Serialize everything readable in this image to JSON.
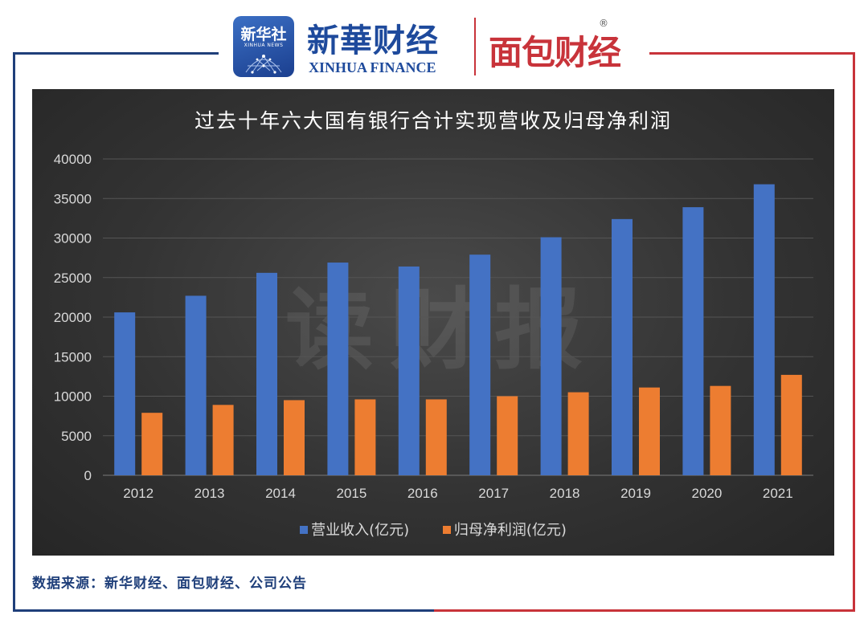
{
  "header": {
    "xinhua_logo_cn": "新华社",
    "xinhua_logo_en": "XINHUA NEWS",
    "brand_cn": "新華财经",
    "brand_en": "XINHUA FINANCE",
    "mianbao_logo": "面包财经",
    "registered_mark": "®"
  },
  "watermark": "读财报",
  "source_note": "数据来源：新华财经、面包财经、公司公告",
  "colors": {
    "revenue": "#4472c4",
    "profit": "#ed7d31",
    "frame_left": "#1f3f7a",
    "frame_right": "#c8333a"
  },
  "chart_data": {
    "type": "bar",
    "title": "过去十年六大国有银行合计实现营收及归母净利润",
    "categories": [
      "2012",
      "2013",
      "2014",
      "2015",
      "2016",
      "2017",
      "2018",
      "2019",
      "2020",
      "2021"
    ],
    "series": [
      {
        "name": "营业收入(亿元)",
        "values": [
          20600,
          22700,
          25600,
          26900,
          26400,
          27900,
          30100,
          32400,
          33900,
          36800
        ]
      },
      {
        "name": "归母净利润(亿元)",
        "values": [
          7900,
          8900,
          9500,
          9600,
          9600,
          10000,
          10500,
          11100,
          11300,
          12700
        ]
      }
    ],
    "y_ticks": [
      "0",
      "5000",
      "10000",
      "15000",
      "20000",
      "25000",
      "30000",
      "35000",
      "40000"
    ],
    "ylim": [
      0,
      40000
    ],
    "grid": true,
    "legend_position": "bottom"
  }
}
